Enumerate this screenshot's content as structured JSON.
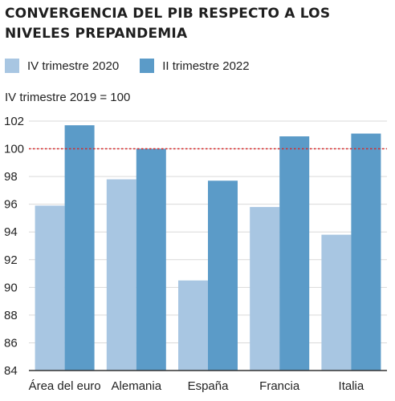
{
  "chart_data": {
    "type": "bar",
    "title": "CONVERGENCIA DEL PIB RESPECTO A LOS NIVELES PREPANDEMIA",
    "subtitle": "IV trimestre 2019 = 100",
    "categories": [
      "Área del euro",
      "Alemania",
      "España",
      "Francia",
      "Italia"
    ],
    "series": [
      {
        "name": "IV trimestre 2020",
        "color": "#a8c6e2",
        "values": [
          95.9,
          97.8,
          90.5,
          95.8,
          93.8
        ]
      },
      {
        "name": "II trimestre 2022",
        "color": "#5b9bc8",
        "values": [
          101.7,
          100.0,
          97.7,
          100.9,
          101.1
        ]
      }
    ],
    "ylim": [
      84,
      102
    ],
    "yticks": [
      84,
      86,
      88,
      90,
      92,
      94,
      96,
      98,
      100,
      102
    ],
    "reference_line": {
      "value": 100,
      "color": "#d62828",
      "style": "dotted"
    },
    "grid": true,
    "legend_position": "top-left"
  }
}
